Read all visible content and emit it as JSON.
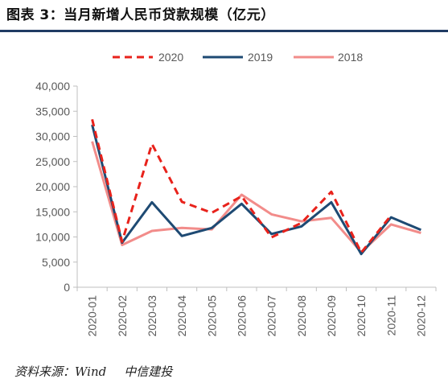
{
  "figure": {
    "title": "图表 3：当月新增人民币贷款规模（亿元）",
    "source_label": "资料来源：",
    "source_name": "Wind",
    "source_org": "中信建投",
    "rule_color": "#1f3b63"
  },
  "chart_data": {
    "type": "line",
    "title": "",
    "xlabel": "",
    "ylabel": "",
    "categories": [
      "2020-01",
      "2020-02",
      "2020-03",
      "2020-04",
      "2020-05",
      "2020-06",
      "2020-07",
      "2020-08",
      "2020-09",
      "2020-10",
      "2020-11",
      "2020-12"
    ],
    "ylim": [
      0,
      40000
    ],
    "yticks": [
      0,
      5000,
      10000,
      15000,
      20000,
      25000,
      30000,
      35000,
      40000
    ],
    "ytick_labels": [
      "0",
      "5,000",
      "10,000",
      "15,000",
      "20,000",
      "25,000",
      "30,000",
      "35,000",
      "40,000"
    ],
    "grid": false,
    "legend_position": "top",
    "series": [
      {
        "name": "2020",
        "color": "#e8221b",
        "style": "dashed",
        "values": [
          33400,
          9057,
          28500,
          17000,
          14800,
          18100,
          9927,
          12800,
          19000,
          6898,
          14300,
          null
        ]
      },
      {
        "name": "2019",
        "color": "#1e4a73",
        "style": "solid",
        "values": [
          32300,
          8858,
          16900,
          10200,
          11800,
          16600,
          10600,
          12100,
          16900,
          6613,
          13900,
          11400
        ]
      },
      {
        "name": "2018",
        "color": "#f28c8a",
        "style": "solid",
        "values": [
          29000,
          8393,
          11200,
          11800,
          11500,
          18400,
          14500,
          13100,
          13800,
          6970,
          12500,
          10800
        ]
      }
    ]
  }
}
